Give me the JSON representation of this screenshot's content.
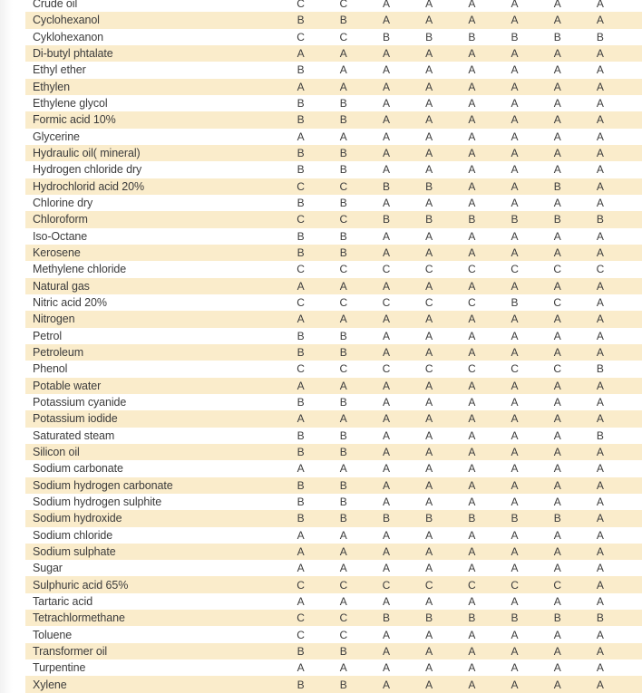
{
  "page": {
    "kind": "chemical-resistance-table",
    "columns": 8
  },
  "colors": {
    "stripe": "#faeccb",
    "text": "#3c3c3c",
    "background": "#ffffff"
  },
  "table": {
    "rows": [
      {
        "name": "Crude oil",
        "ratings": [
          "C",
          "C",
          "A",
          "A",
          "A",
          "A",
          "A",
          "A"
        ]
      },
      {
        "name": "Cyclohexanol",
        "ratings": [
          "B",
          "B",
          "A",
          "A",
          "A",
          "A",
          "A",
          "A"
        ]
      },
      {
        "name": "Cyklohexanon",
        "ratings": [
          "C",
          "C",
          "B",
          "B",
          "B",
          "B",
          "B",
          "B"
        ]
      },
      {
        "name": "Di-butyl phtalate",
        "ratings": [
          "A",
          "A",
          "A",
          "A",
          "A",
          "A",
          "A",
          "A"
        ]
      },
      {
        "name": "Ethyl ether",
        "ratings": [
          "B",
          "A",
          "A",
          "A",
          "A",
          "A",
          "A",
          "A"
        ]
      },
      {
        "name": "Ethylen",
        "ratings": [
          "A",
          "A",
          "A",
          "A",
          "A",
          "A",
          "A",
          "A"
        ]
      },
      {
        "name": "Ethylene glycol",
        "ratings": [
          "B",
          "B",
          "A",
          "A",
          "A",
          "A",
          "A",
          "A"
        ]
      },
      {
        "name": "Formic acid 10%",
        "ratings": [
          "B",
          "B",
          "A",
          "A",
          "A",
          "A",
          "A",
          "A"
        ]
      },
      {
        "name": "Glycerine",
        "ratings": [
          "A",
          "A",
          "A",
          "A",
          "A",
          "A",
          "A",
          "A"
        ]
      },
      {
        "name": "Hydraulic oil( mineral)",
        "ratings": [
          "B",
          "B",
          "A",
          "A",
          "A",
          "A",
          "A",
          "A"
        ]
      },
      {
        "name": "Hydrogen chloride dry",
        "ratings": [
          "B",
          "B",
          "A",
          "A",
          "A",
          "A",
          "A",
          "A"
        ]
      },
      {
        "name": "Hydrochlorid acid 20%",
        "ratings": [
          "C",
          "C",
          "B",
          "B",
          "A",
          "A",
          "B",
          "A"
        ]
      },
      {
        "name": "Chlorine dry",
        "ratings": [
          "B",
          "B",
          "A",
          "A",
          "A",
          "A",
          "A",
          "A"
        ]
      },
      {
        "name": "Chloroform",
        "ratings": [
          "C",
          "C",
          "B",
          "B",
          "B",
          "B",
          "B",
          "B"
        ]
      },
      {
        "name": "Iso-Octane",
        "ratings": [
          "B",
          "B",
          "A",
          "A",
          "A",
          "A",
          "A",
          "A"
        ]
      },
      {
        "name": "Kerosene",
        "ratings": [
          "B",
          "B",
          "A",
          "A",
          "A",
          "A",
          "A",
          "A"
        ]
      },
      {
        "name": "Methylene chloride",
        "ratings": [
          "C",
          "C",
          "C",
          "C",
          "C",
          "C",
          "C",
          "C"
        ]
      },
      {
        "name": "Natural gas",
        "ratings": [
          "A",
          "A",
          "A",
          "A",
          "A",
          "A",
          "A",
          "A"
        ]
      },
      {
        "name": "Nitric acid 20%",
        "ratings": [
          "C",
          "C",
          "C",
          "C",
          "C",
          "B",
          "C",
          "A"
        ]
      },
      {
        "name": "Nitrogen",
        "ratings": [
          "A",
          "A",
          "A",
          "A",
          "A",
          "A",
          "A",
          "A"
        ]
      },
      {
        "name": "Petrol",
        "ratings": [
          "B",
          "B",
          "A",
          "A",
          "A",
          "A",
          "A",
          "A"
        ]
      },
      {
        "name": "Petroleum",
        "ratings": [
          "B",
          "B",
          "A",
          "A",
          "A",
          "A",
          "A",
          "A"
        ]
      },
      {
        "name": "Phenol",
        "ratings": [
          "C",
          "C",
          "C",
          "C",
          "C",
          "C",
          "C",
          "B"
        ]
      },
      {
        "name": "Potable water",
        "ratings": [
          "A",
          "A",
          "A",
          "A",
          "A",
          "A",
          "A",
          "A"
        ]
      },
      {
        "name": "Potassium cyanide",
        "ratings": [
          "B",
          "B",
          "A",
          "A",
          "A",
          "A",
          "A",
          "A"
        ]
      },
      {
        "name": "Potassium iodide",
        "ratings": [
          "A",
          "A",
          "A",
          "A",
          "A",
          "A",
          "A",
          "A"
        ]
      },
      {
        "name": "Saturated steam",
        "ratings": [
          "B",
          "B",
          "A",
          "A",
          "A",
          "A",
          "A",
          "B"
        ]
      },
      {
        "name": "Silicon oil",
        "ratings": [
          "B",
          "B",
          "A",
          "A",
          "A",
          "A",
          "A",
          "A"
        ]
      },
      {
        "name": "Sodium carbonate",
        "ratings": [
          "A",
          "A",
          "A",
          "A",
          "A",
          "A",
          "A",
          "A"
        ]
      },
      {
        "name": "Sodium hydrogen carbonate",
        "ratings": [
          "B",
          "B",
          "A",
          "A",
          "A",
          "A",
          "A",
          "A"
        ]
      },
      {
        "name": "Sodium hydrogen sulphite",
        "ratings": [
          "B",
          "B",
          "A",
          "A",
          "A",
          "A",
          "A",
          "A"
        ]
      },
      {
        "name": "Sodium hydroxide",
        "ratings": [
          "B",
          "B",
          "B",
          "B",
          "B",
          "B",
          "B",
          "A"
        ]
      },
      {
        "name": "Sodium chloride",
        "ratings": [
          "A",
          "A",
          "A",
          "A",
          "A",
          "A",
          "A",
          "A"
        ]
      },
      {
        "name": "Sodium sulphate",
        "ratings": [
          "A",
          "A",
          "A",
          "A",
          "A",
          "A",
          "A",
          "A"
        ]
      },
      {
        "name": "Sugar",
        "ratings": [
          "A",
          "A",
          "A",
          "A",
          "A",
          "A",
          "A",
          "A"
        ]
      },
      {
        "name": "Sulphuric acid 65%",
        "ratings": [
          "C",
          "C",
          "C",
          "C",
          "C",
          "C",
          "C",
          "A"
        ]
      },
      {
        "name": "Tartaric acid",
        "ratings": [
          "A",
          "A",
          "A",
          "A",
          "A",
          "A",
          "A",
          "A"
        ]
      },
      {
        "name": "Tetrachlormethane",
        "ratings": [
          "C",
          "C",
          "B",
          "B",
          "B",
          "B",
          "B",
          "B"
        ]
      },
      {
        "name": "Toluene",
        "ratings": [
          "C",
          "C",
          "A",
          "A",
          "A",
          "A",
          "A",
          "A"
        ]
      },
      {
        "name": "Transformer oil",
        "ratings": [
          "B",
          "B",
          "A",
          "A",
          "A",
          "A",
          "A",
          "A"
        ]
      },
      {
        "name": "Turpentine",
        "ratings": [
          "A",
          "A",
          "A",
          "A",
          "A",
          "A",
          "A",
          "A"
        ]
      },
      {
        "name": "Xylene",
        "ratings": [
          "B",
          "B",
          "A",
          "A",
          "A",
          "A",
          "A",
          "A"
        ]
      }
    ]
  }
}
